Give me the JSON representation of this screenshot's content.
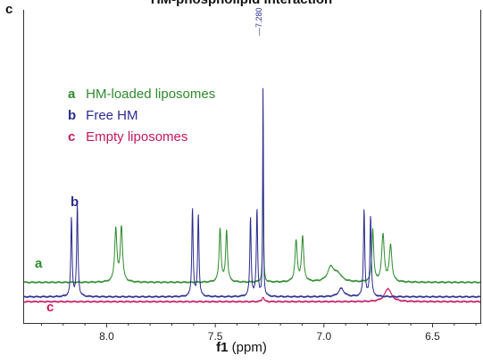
{
  "figure": {
    "panel_label": "c",
    "title": "HM-phospholipid interaction",
    "peak_annotation": "—7.280"
  },
  "chart_data": {
    "type": "line",
    "title": "HM-phospholipid interaction",
    "xlabel_bold": "f1",
    "xlabel_rest": " (ppm)",
    "ylabel": "",
    "xlim": [
      8.38,
      6.28
    ],
    "x_reversed": true,
    "y_axis_shown": false,
    "grid": false,
    "legend_position": "top-left",
    "x_ticks": [
      {
        "value": 8.0,
        "label": "8.0"
      },
      {
        "value": 7.5,
        "label": "7.5"
      },
      {
        "value": 7.0,
        "label": "7.0"
      },
      {
        "value": 6.5,
        "label": "6.5"
      }
    ],
    "legend": [
      {
        "key": "a",
        "label": "HM-loaded liposomes",
        "color": "#2e8b2e"
      },
      {
        "key": "b",
        "label": "Free HM",
        "color": "#2b2b8f"
      },
      {
        "key": "c",
        "label": "Empty liposomes",
        "color": "#c21860"
      }
    ],
    "series": [
      {
        "key": "a",
        "name": "HM-loaded liposomes",
        "color": "#2e8b2e",
        "baseline_y": 0.1,
        "peaks": [
          {
            "x": 7.958,
            "h": 0.44,
            "w": 0.006
          },
          {
            "x": 7.932,
            "h": 0.46,
            "w": 0.006
          },
          {
            "x": 7.478,
            "h": 0.45,
            "w": 0.005
          },
          {
            "x": 7.448,
            "h": 0.43,
            "w": 0.005
          },
          {
            "x": 7.28,
            "h": 1.25,
            "w": 0.002
          },
          {
            "x": 7.128,
            "h": 0.34,
            "w": 0.006
          },
          {
            "x": 7.098,
            "h": 0.37,
            "w": 0.006
          },
          {
            "x": 6.968,
            "h": 0.12,
            "w": 0.018
          },
          {
            "x": 6.935,
            "h": 0.06,
            "w": 0.02
          },
          {
            "x": 6.775,
            "h": 0.44,
            "w": 0.005
          },
          {
            "x": 6.728,
            "h": 0.39,
            "w": 0.007
          },
          {
            "x": 6.693,
            "h": 0.3,
            "w": 0.007
          }
        ]
      },
      {
        "key": "b",
        "name": "Free HM",
        "color": "#2b2b8f",
        "baseline_y": -0.02,
        "peaks": [
          {
            "x": 8.162,
            "h": 0.66,
            "w": 0.0035
          },
          {
            "x": 8.135,
            "h": 0.76,
            "w": 0.0035
          },
          {
            "x": 7.605,
            "h": 0.74,
            "w": 0.0035
          },
          {
            "x": 7.578,
            "h": 0.69,
            "w": 0.0035
          },
          {
            "x": 7.338,
            "h": 0.66,
            "w": 0.0035
          },
          {
            "x": 7.308,
            "h": 0.73,
            "w": 0.0035
          },
          {
            "x": 7.28,
            "h": 1.85,
            "w": 0.0018
          },
          {
            "x": 6.92,
            "h": 0.07,
            "w": 0.015
          },
          {
            "x": 6.815,
            "h": 0.73,
            "w": 0.0035
          },
          {
            "x": 6.785,
            "h": 0.68,
            "w": 0.0035
          }
        ]
      },
      {
        "key": "c",
        "name": "Empty liposomes",
        "color": "#c21860",
        "baseline_y": -0.06,
        "peaks": [
          {
            "x": 7.28,
            "h": 0.04,
            "w": 0.005
          },
          {
            "x": 6.705,
            "h": 0.11,
            "w": 0.018
          }
        ]
      }
    ]
  }
}
